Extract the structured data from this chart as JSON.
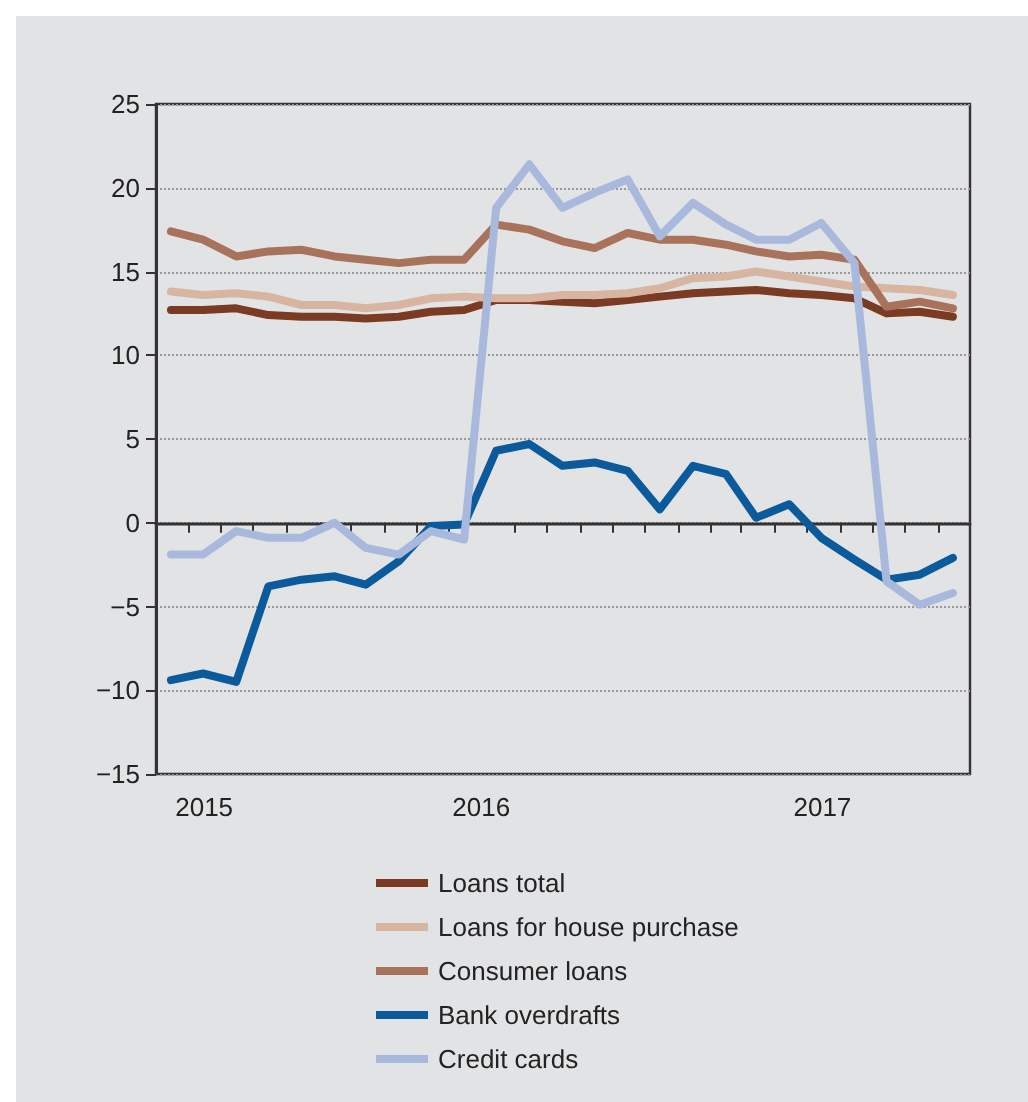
{
  "chart_data": {
    "type": "line",
    "x": [
      "2015-09-15",
      "2015-10-15",
      "2015-11-15",
      "2015-12-15",
      "2016-01-15",
      "2016-02-15",
      "2016-03-15",
      "2016-04-15",
      "2016-05-15",
      "2016-06-15",
      "2016-07-15",
      "2016-08-15",
      "2016-09-15",
      "2016-10-15",
      "2016-11-15",
      "2016-12-15",
      "2017-01-15",
      "2017-02-15",
      "2017-03-15",
      "2017-04-15",
      "2017-05-15",
      "2017-06-15",
      "2017-07-15",
      "2017-08-15",
      "2017-09-15"
    ],
    "series": [
      {
        "name": "Loans total",
        "color": "#7b3a22",
        "values": [
          12.7,
          12.7,
          12.8,
          12.4,
          12.3,
          12.3,
          12.2,
          12.3,
          12.6,
          12.7,
          13.3,
          13.3,
          13.2,
          13.1,
          13.3,
          13.5,
          13.7,
          13.8,
          13.9,
          13.7,
          13.6,
          13.4,
          12.5,
          12.6,
          12.3
        ]
      },
      {
        "name": "Loans for house purchase",
        "color": "#d7b5a0",
        "values": [
          13.8,
          13.6,
          13.7,
          13.5,
          13.0,
          13.0,
          12.8,
          13.0,
          13.4,
          13.5,
          13.4,
          13.4,
          13.6,
          13.6,
          13.7,
          14.0,
          14.6,
          14.7,
          15.0,
          14.7,
          14.4,
          14.1,
          14.0,
          13.9,
          13.6
        ]
      },
      {
        "name": "Consumer loans",
        "color": "#a8735a",
        "values": [
          17.4,
          16.9,
          15.9,
          16.2,
          16.3,
          15.9,
          15.7,
          15.5,
          15.7,
          15.7,
          17.8,
          17.5,
          16.8,
          16.4,
          17.3,
          16.9,
          16.9,
          16.6,
          16.2,
          15.9,
          16.0,
          15.7,
          12.9,
          13.2,
          12.8
        ]
      },
      {
        "name": "Bank overdrafts",
        "color": "#0a5a9c",
        "values": [
          -9.4,
          -9.0,
          -9.5,
          -3.8,
          -3.4,
          -3.2,
          -3.7,
          -2.3,
          -0.2,
          -0.1,
          4.3,
          4.7,
          3.4,
          3.6,
          3.1,
          0.8,
          3.4,
          2.9,
          0.3,
          1.1,
          -0.9,
          -2.2,
          -3.4,
          -3.1,
          -2.1
        ]
      },
      {
        "name": "Credit cards",
        "color": "#a9b9dd",
        "values": [
          -1.9,
          -1.9,
          -0.5,
          -0.9,
          -0.9,
          0,
          -1.5,
          -1.9,
          -0.5,
          -1.0,
          18.8,
          21.4,
          18.8,
          19.7,
          20.5,
          17.1,
          19.1,
          17.8,
          16.9,
          16.9,
          17.9,
          15.5,
          -3.5,
          -4.9,
          -4.2
        ]
      }
    ],
    "xlim": [
      "2015-09-01",
      "2017-10-01"
    ],
    "xticks": [
      {
        "value": "2015-10-01",
        "label": null
      },
      {
        "value": "2015-10-16",
        "label": "2015"
      },
      {
        "value": "2015-11-01",
        "label": null
      },
      {
        "value": "2015-12-01",
        "label": null
      },
      {
        "value": "2016-01-01",
        "label": null
      },
      {
        "value": "2016-02-01",
        "label": null
      },
      {
        "value": "2016-03-01",
        "label": null
      },
      {
        "value": "2016-04-01",
        "label": null
      },
      {
        "value": "2016-05-01",
        "label": null
      },
      {
        "value": "2016-06-01",
        "label": null
      },
      {
        "value": "2016-07-01",
        "label": "2016"
      },
      {
        "value": "2016-08-01",
        "label": null
      },
      {
        "value": "2016-09-01",
        "label": null
      },
      {
        "value": "2016-10-01",
        "label": null
      },
      {
        "value": "2016-11-01",
        "label": null
      },
      {
        "value": "2016-12-01",
        "label": null
      },
      {
        "value": "2017-01-01",
        "label": null
      },
      {
        "value": "2017-02-01",
        "label": null
      },
      {
        "value": "2017-03-01",
        "label": null
      },
      {
        "value": "2017-04-01",
        "label": null
      },
      {
        "value": "2017-05-01",
        "label": null
      },
      {
        "value": "2017-05-16",
        "label": "2017"
      },
      {
        "value": "2017-06-01",
        "label": null
      },
      {
        "value": "2017-07-01",
        "label": null
      },
      {
        "value": "2017-08-01",
        "label": null
      },
      {
        "value": "2017-09-01",
        "label": null
      }
    ],
    "ylim": [
      -15,
      25
    ],
    "yticks": [
      -15,
      -10,
      -5,
      0,
      5,
      10,
      15,
      20,
      25
    ],
    "grid": "y",
    "legend": "bottom",
    "marker": "none",
    "line_style": "solid"
  }
}
